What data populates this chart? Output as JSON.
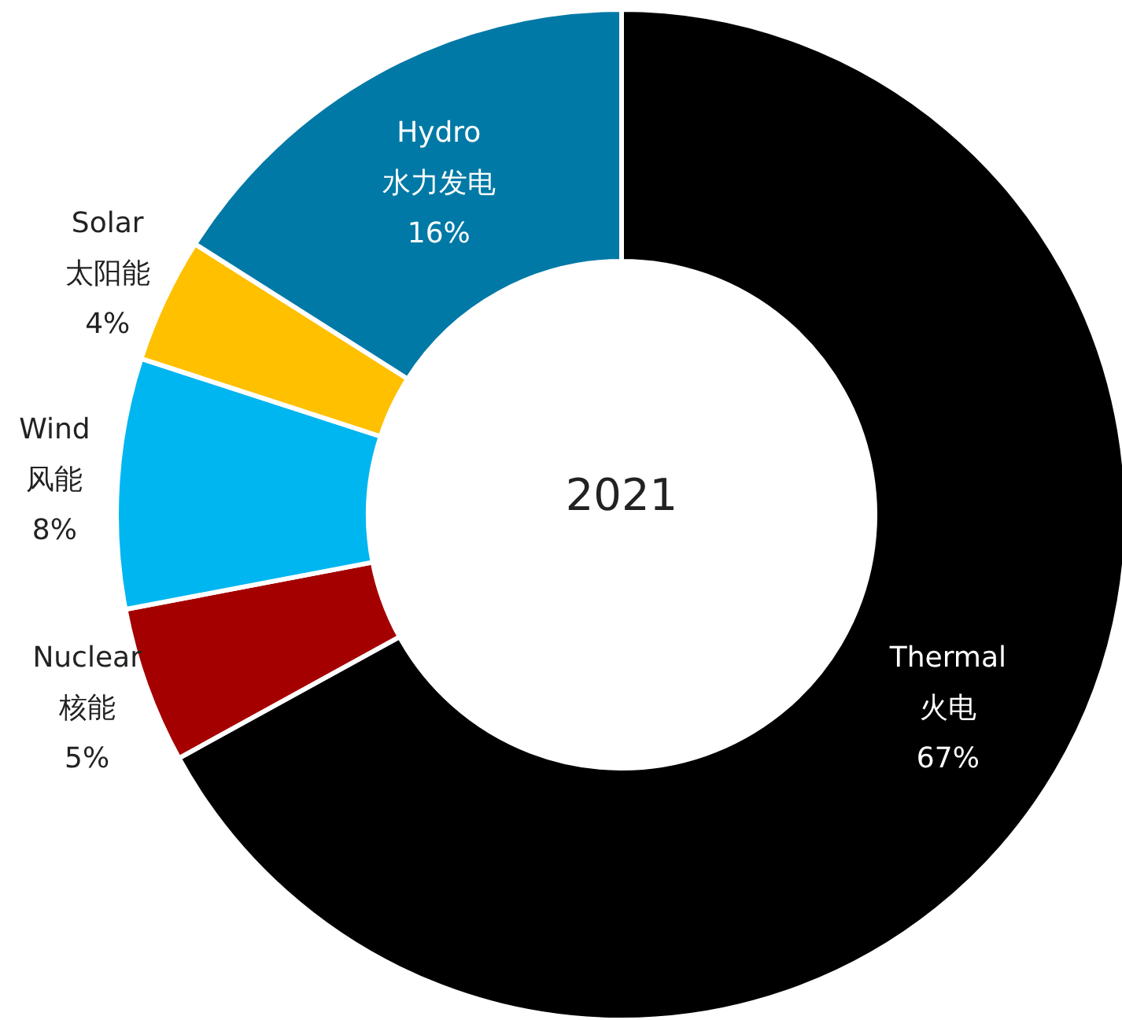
{
  "chart_data": {
    "type": "donut",
    "title": "2021",
    "categories": [
      "Thermal\n火电",
      "Nuclear\n核能",
      "Wind\n风能",
      "Solar\n太阳能",
      "Hydro\n水力发电"
    ],
    "values": [
      67,
      5,
      8,
      4,
      16
    ],
    "value_labels": [
      "67%",
      "5%",
      "8%",
      "4%",
      "16%"
    ],
    "colors": [
      "#000000",
      "#a50000",
      "#00b6f0",
      "#ffc000",
      "#0079a6"
    ]
  }
}
